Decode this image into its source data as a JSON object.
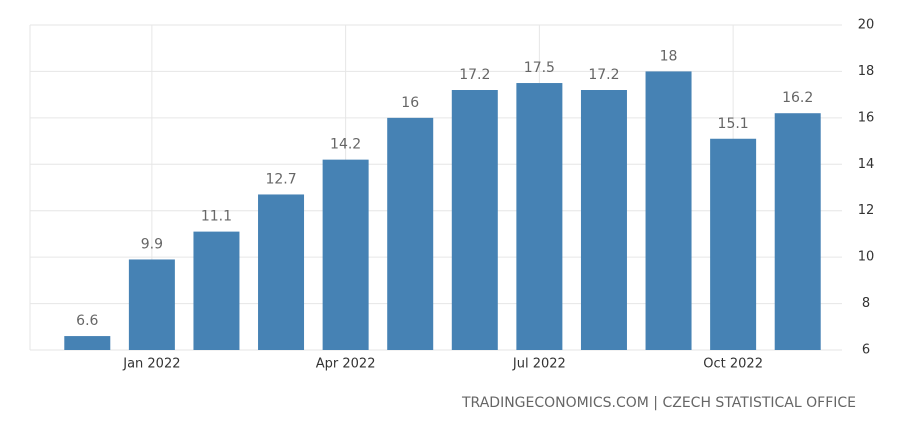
{
  "chart_data": {
    "type": "bar",
    "categories": [
      null,
      "Jan 2022",
      null,
      null,
      "Apr 2022",
      null,
      null,
      "Jul 2022",
      null,
      null,
      "Oct 2022",
      null
    ],
    "values": [
      6.6,
      9.9,
      11.1,
      12.7,
      14.2,
      16,
      17.2,
      17.5,
      17.2,
      18,
      15.1,
      16.2
    ],
    "color": "#4682b4",
    "ylim": [
      6,
      20
    ],
    "yticks": [
      6,
      8,
      10,
      12,
      14,
      16,
      18,
      20
    ],
    "grid": true,
    "source": "TRADINGECONOMICS.COM | CZECH STATISTICAL OFFICE"
  }
}
